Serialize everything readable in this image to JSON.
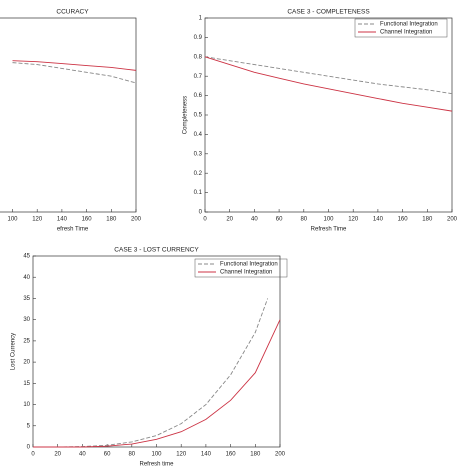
{
  "chart_data": [
    {
      "type": "line",
      "title": "CCURACY",
      "x_label": "efresh Time",
      "xlim": [
        0,
        200
      ],
      "ylim": [
        0,
        1
      ],
      "xticks": [
        100,
        120,
        140,
        160,
        180,
        200
      ],
      "series": [
        {
          "name": "Functional Integration",
          "color": "#888888",
          "dash": true,
          "x": [
            100,
            120,
            140,
            160,
            180,
            200
          ],
          "values": [
            0.77,
            0.76,
            0.74,
            0.72,
            0.7,
            0.665
          ]
        },
        {
          "name": "Channel Integration",
          "color": "#cc3344",
          "dash": false,
          "x": [
            100,
            120,
            140,
            160,
            180,
            200
          ],
          "values": [
            0.78,
            0.775,
            0.765,
            0.755,
            0.745,
            0.73
          ]
        }
      ]
    },
    {
      "type": "line",
      "title": "CASE 3 - COMPLETENESS",
      "x_label": "Refresh Time",
      "y_label": "Completeness",
      "xlim": [
        0,
        200
      ],
      "ylim": [
        0,
        1
      ],
      "xticks": [
        0,
        20,
        40,
        60,
        80,
        100,
        120,
        140,
        160,
        180,
        200
      ],
      "yticks": [
        0,
        0.1,
        0.2,
        0.3,
        0.4,
        0.5,
        0.6,
        0.7,
        0.8,
        0.9,
        1
      ],
      "series": [
        {
          "name": "Functional Integration",
          "color": "#888888",
          "dash": true,
          "x": [
            0,
            20,
            40,
            60,
            80,
            100,
            120,
            140,
            160,
            180,
            200
          ],
          "values": [
            0.8,
            0.78,
            0.76,
            0.74,
            0.72,
            0.7,
            0.68,
            0.66,
            0.645,
            0.63,
            0.61
          ]
        },
        {
          "name": "Channel Integration",
          "color": "#cc3344",
          "dash": false,
          "x": [
            0,
            20,
            40,
            60,
            80,
            100,
            120,
            140,
            160,
            180,
            200
          ],
          "values": [
            0.8,
            0.76,
            0.72,
            0.69,
            0.66,
            0.635,
            0.61,
            0.585,
            0.56,
            0.54,
            0.52
          ]
        }
      ]
    },
    {
      "type": "line",
      "title": "CASE 3 - LOST CURRENCY",
      "x_label": "Refresh time",
      "y_label": "Lost Currency",
      "xlim": [
        0,
        200
      ],
      "ylim": [
        0,
        45
      ],
      "xticks": [
        0,
        20,
        40,
        60,
        80,
        100,
        120,
        140,
        160,
        180,
        200
      ],
      "yticks": [
        0,
        5,
        10,
        15,
        20,
        25,
        30,
        35,
        40,
        45
      ],
      "series": [
        {
          "name": "Functional Integration",
          "color": "#888888",
          "dash": true,
          "x": [
            0,
            20,
            40,
            60,
            80,
            100,
            120,
            140,
            160,
            180,
            190
          ],
          "values": [
            0,
            0,
            0.1,
            0.4,
            1.2,
            2.7,
            5.5,
            10,
            17,
            27,
            35
          ]
        },
        {
          "name": "Channel Integration",
          "color": "#cc3344",
          "dash": false,
          "x": [
            0,
            20,
            40,
            60,
            80,
            100,
            120,
            140,
            160,
            180,
            200
          ],
          "values": [
            0,
            0,
            0,
            0.2,
            0.7,
            1.8,
            3.6,
            6.5,
            11,
            17.5,
            30
          ]
        }
      ]
    }
  ]
}
